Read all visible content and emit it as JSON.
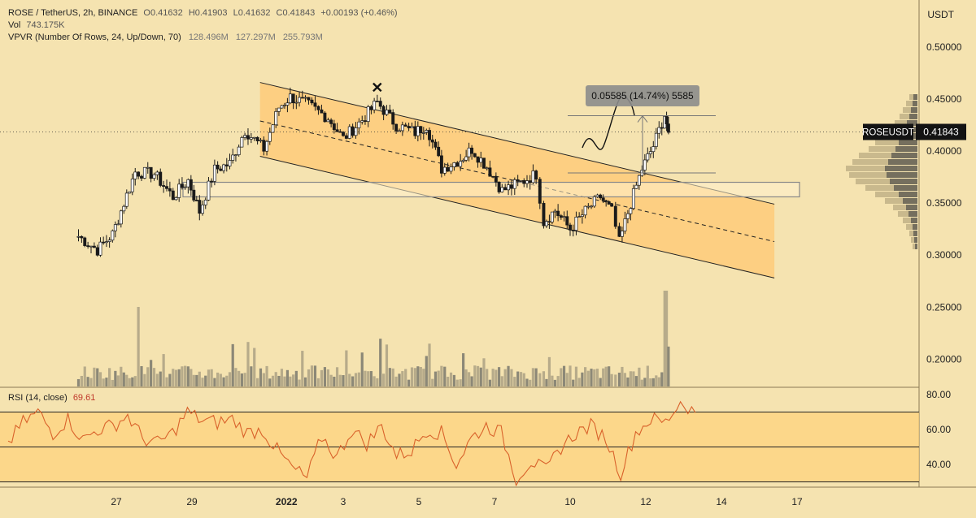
{
  "header": {
    "symbol": "ROSE / TetherUS, 2h, BINANCE",
    "open": "O0.41632",
    "high": "H0.41903",
    "low": "L0.41632",
    "close": "C0.41843",
    "change": "+0.00193 (+0.46%)",
    "vol_label": "Vol",
    "vol_value": "743.175K",
    "vpvr_label": "VPVR (Number Of Rows, 24, Up/Down, 70)",
    "vpvr_v1": "128.496M",
    "vpvr_v2": "127.297M",
    "vpvr_v3": "255.793M",
    "currency": "USDT"
  },
  "rsi": {
    "label": "RSI (14, close)",
    "value": "69.61"
  },
  "price_tag": {
    "symbol": "ROSEUSDT",
    "value": "0.41843"
  },
  "measure_label": "0.05585 (14.74%) 5585",
  "colors": {
    "background": "#f5e3b0",
    "channel_fill": "#ffc873",
    "up_candle": "#ffffff",
    "down_candle": "#1a1a1a",
    "rsi_line": "#d9622b",
    "rsi_band": "#ffd27a",
    "tag_bg": "#131313"
  },
  "chart_data": [
    {
      "type": "candlestick",
      "title": "ROSE / TetherUS, 2h, BINANCE",
      "y_axis_labels": [
        "0.50000",
        "0.45000",
        "0.40000",
        "0.35000",
        "0.30000",
        "0.25000",
        "0.20000"
      ],
      "x_axis_labels": [
        "27",
        "29",
        "2022",
        "3",
        "5",
        "7",
        "10",
        "12",
        "14",
        "17"
      ],
      "ylim": [
        0.17,
        0.525
      ],
      "last_price": 0.41843,
      "close_path": [
        {
          "x": 26.0,
          "y": 0.318
        },
        {
          "x": 26.5,
          "y": 0.305
        },
        {
          "x": 26.9,
          "y": 0.32
        },
        {
          "x": 27.2,
          "y": 0.35
        },
        {
          "x": 27.5,
          "y": 0.38
        },
        {
          "x": 28.0,
          "y": 0.378
        },
        {
          "x": 28.5,
          "y": 0.356
        },
        {
          "x": 28.9,
          "y": 0.372
        },
        {
          "x": 29.2,
          "y": 0.342
        },
        {
          "x": 29.6,
          "y": 0.382
        },
        {
          "x": 30.0,
          "y": 0.388
        },
        {
          "x": 30.4,
          "y": 0.42
        },
        {
          "x": 30.9,
          "y": 0.402
        },
        {
          "x": 31.3,
          "y": 0.442
        },
        {
          "x": 31.6,
          "y": 0.452
        },
        {
          "x": 32.0,
          "y": 0.446
        },
        {
          "x": 32.6,
          "y": 0.432
        },
        {
          "x": 33.0,
          "y": 0.412
        },
        {
          "x": 33.5,
          "y": 0.43
        },
        {
          "x": 33.9,
          "y": 0.447
        },
        {
          "x": 34.4,
          "y": 0.425
        },
        {
          "x": 34.9,
          "y": 0.418
        },
        {
          "x": 35.2,
          "y": 0.425
        },
        {
          "x": 35.6,
          "y": 0.383
        },
        {
          "x": 36.1,
          "y": 0.392
        },
        {
          "x": 36.4,
          "y": 0.402
        },
        {
          "x": 36.8,
          "y": 0.385
        },
        {
          "x": 37.2,
          "y": 0.362
        },
        {
          "x": 37.7,
          "y": 0.37
        },
        {
          "x": 38.1,
          "y": 0.378
        },
        {
          "x": 38.3,
          "y": 0.332
        },
        {
          "x": 38.6,
          "y": 0.343
        },
        {
          "x": 39.0,
          "y": 0.325
        },
        {
          "x": 39.4,
          "y": 0.342
        },
        {
          "x": 39.8,
          "y": 0.356
        },
        {
          "x": 40.1,
          "y": 0.342
        },
        {
          "x": 40.3,
          "y": 0.312
        },
        {
          "x": 40.6,
          "y": 0.35
        },
        {
          "x": 40.9,
          "y": 0.383
        },
        {
          "x": 41.2,
          "y": 0.405
        },
        {
          "x": 41.5,
          "y": 0.435
        },
        {
          "x": 41.6,
          "y": 0.418
        }
      ],
      "volume_label": "Vol 743.175K",
      "descending_channel": {
        "upper": [
          {
            "x": 30.8,
            "y": 0.466
          },
          {
            "x": 44.4,
            "y": 0.349
          }
        ],
        "lower": [
          {
            "x": 30.8,
            "y": 0.395
          },
          {
            "x": 44.4,
            "y": 0.278
          }
        ],
        "middle": [
          {
            "x": 30.8,
            "y": 0.429
          },
          {
            "x": 44.4,
            "y": 0.313
          }
        ]
      },
      "support_zone": [
        0.356,
        0.37
      ],
      "measurement": {
        "from": 0.379,
        "to": 0.434,
        "label": "0.05585 (14.74%) 5585"
      }
    },
    {
      "type": "line",
      "title": "RSI (14, close)",
      "current_value": 69.61,
      "y_axis_labels": [
        "80.00",
        "60.00",
        "40.00"
      ],
      "ylim": [
        25,
        83
      ],
      "levels": [
        70,
        50,
        30
      ],
      "values": [
        52,
        64,
        70,
        58,
        66,
        54,
        60,
        62,
        68,
        55,
        52,
        58,
        70,
        65,
        64,
        66,
        58,
        60,
        48,
        38,
        32,
        56,
        44,
        60,
        52,
        62,
        45,
        48,
        60,
        58,
        40,
        55,
        62,
        58,
        32,
        42,
        36,
        50,
        58,
        62,
        55,
        35,
        58,
        66,
        64,
        76,
        70
      ]
    }
  ]
}
